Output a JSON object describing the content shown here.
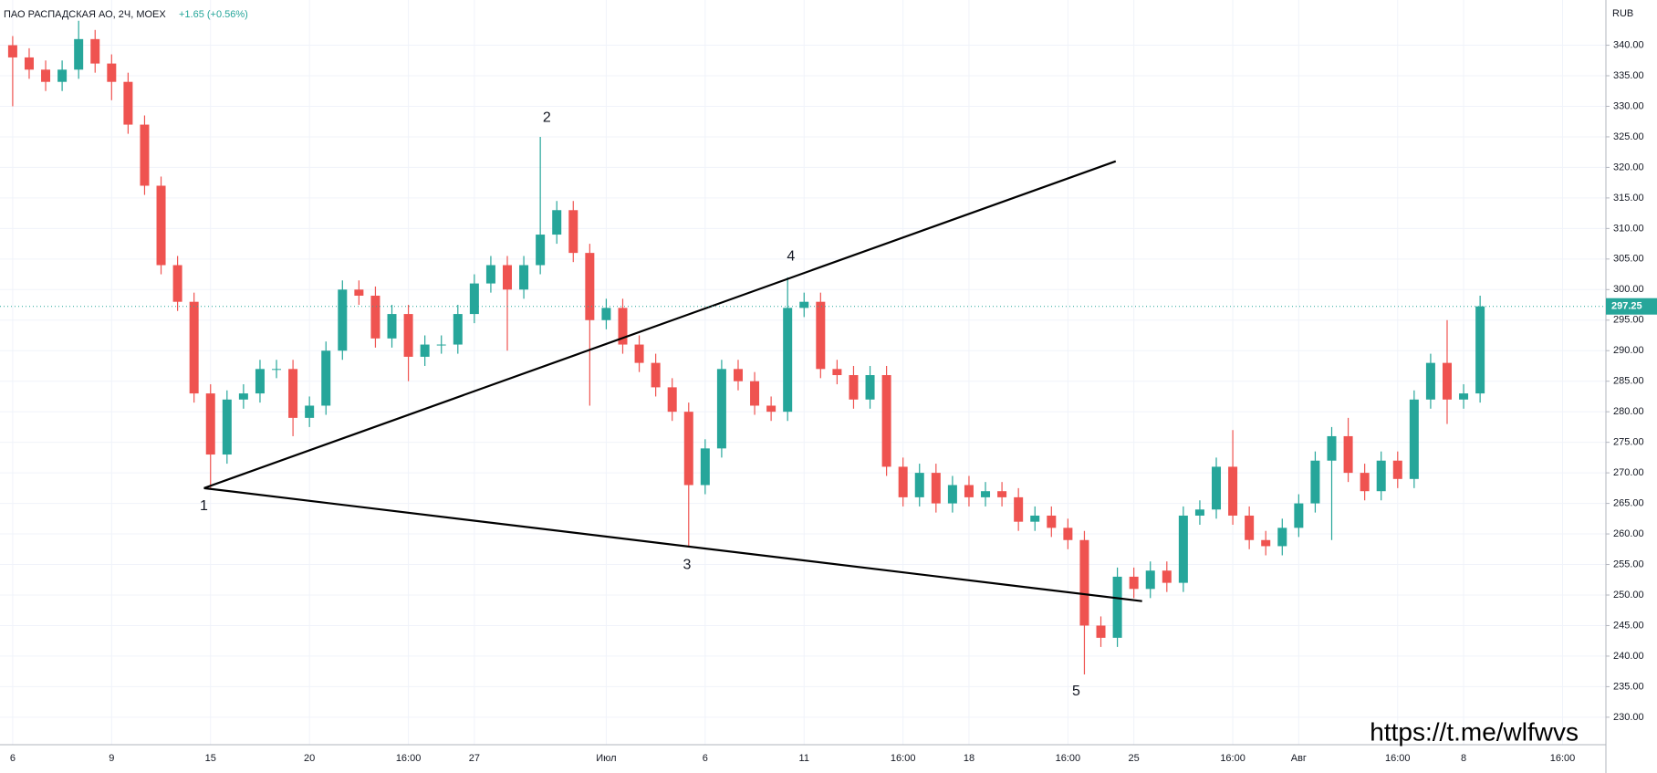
{
  "chart_data": {
    "type": "candlestick",
    "title": "ПАО РАСПАДСКАЯ АО, 2Ч, MOEX",
    "change": "+1.65 (+0.56%)",
    "currency": "RUB",
    "watermark": "https://t.me/wlfwvs",
    "up_color": "#26a69a",
    "down_color": "#ef5350",
    "grid": true,
    "categories": [
      "6",
      null,
      null,
      null,
      null,
      null,
      "9",
      null,
      null,
      null,
      null,
      null,
      "15",
      null,
      null,
      null,
      null,
      null,
      "20",
      null,
      null,
      null,
      null,
      null,
      "16:00",
      null,
      null,
      null,
      "27",
      null,
      null,
      null,
      null,
      null,
      null,
      null,
      "Июл",
      null,
      null,
      null,
      null,
      null,
      "6",
      null,
      null,
      null,
      null,
      null,
      "11",
      null,
      null,
      null,
      null,
      null,
      "16:00",
      null,
      null,
      null,
      "18",
      null,
      null,
      null,
      null,
      null,
      "16:00",
      null,
      null,
      null,
      "25",
      null,
      null,
      null,
      null,
      null,
      "16:00",
      null,
      null,
      null,
      "Авг",
      null,
      null,
      null,
      null,
      null,
      "16:00",
      null,
      null,
      null,
      "8",
      null,
      null,
      null,
      null,
      null,
      "16:00",
      null,
      null
    ],
    "open": [
      340,
      338,
      336,
      334,
      336,
      341,
      337,
      334,
      327,
      317,
      304,
      298,
      283,
      273,
      282,
      283,
      287,
      287,
      279,
      281,
      290,
      300,
      299,
      292,
      296,
      289,
      291,
      291,
      296,
      301,
      304,
      300,
      304,
      309,
      313,
      306,
      295,
      297,
      291,
      288,
      284,
      280,
      268,
      274,
      287,
      285,
      281,
      280,
      297,
      298,
      287,
      286,
      282,
      286,
      271,
      266,
      270,
      265,
      268,
      266,
      267,
      266,
      262,
      263,
      261,
      259,
      245,
      243,
      253,
      251,
      254,
      252,
      263,
      264,
      271,
      263,
      259,
      258,
      261,
      265,
      272,
      276,
      270,
      267,
      272,
      269,
      282,
      288,
      282,
      283,
      null,
      null,
      null,
      null,
      null,
      null,
      null
    ],
    "high": [
      341.5,
      339.5,
      337.5,
      337.5,
      344,
      342.5,
      338.5,
      335.5,
      328.5,
      318.5,
      305.5,
      299.5,
      284.5,
      283.5,
      284.5,
      288.5,
      288.5,
      288.5,
      282.5,
      291.5,
      301.5,
      301.5,
      300.5,
      297.5,
      297.5,
      292.5,
      292.5,
      297.5,
      302.5,
      305.5,
      305.5,
      305.5,
      325,
      314.5,
      314.5,
      307.5,
      298.5,
      298.5,
      292.5,
      289.5,
      285.5,
      281.5,
      275.5,
      288.5,
      288.5,
      286.5,
      282.5,
      302,
      299.5,
      299.5,
      288.5,
      287.5,
      287.5,
      287.5,
      272.5,
      271.5,
      271.5,
      269.5,
      269.5,
      268.5,
      268.5,
      267.5,
      264.5,
      264.5,
      262.5,
      260.5,
      246.5,
      254.5,
      254.5,
      255.5,
      255.5,
      264.5,
      265.5,
      272.5,
      277,
      264.5,
      260.5,
      262.5,
      266.5,
      273.5,
      277.5,
      279,
      271.5,
      273.5,
      273.5,
      283.5,
      289.5,
      295,
      284.5,
      299,
      null,
      null,
      null,
      null,
      null,
      null,
      null
    ],
    "low": [
      330,
      334.5,
      332.5,
      332.5,
      334.5,
      335.5,
      331,
      325.5,
      315.5,
      302.5,
      296.5,
      281.5,
      267.5,
      271.5,
      280.5,
      281.5,
      285.5,
      276,
      277.5,
      279.5,
      288.5,
      297.5,
      290.5,
      290.5,
      285,
      287.5,
      289.5,
      289.5,
      294.5,
      299.5,
      290,
      298.5,
      302.5,
      307.5,
      304.5,
      281,
      293.5,
      289.5,
      286.5,
      282.5,
      278.5,
      258,
      266.5,
      272.5,
      283.5,
      279.5,
      278.5,
      278.5,
      295.5,
      285.5,
      284.5,
      280.5,
      280.5,
      269.5,
      264.5,
      264.5,
      263.5,
      263.5,
      264.5,
      264.5,
      264.5,
      260.5,
      260.5,
      259.5,
      257.5,
      237,
      241.5,
      241.5,
      249.5,
      249.5,
      250.5,
      250.5,
      261.5,
      262.5,
      261.5,
      257.5,
      256.5,
      256.5,
      259.5,
      263.5,
      259,
      268.5,
      265.5,
      265.5,
      267.5,
      267.5,
      280.5,
      278,
      280.5,
      281.5,
      null,
      null,
      null,
      null,
      null,
      null,
      null
    ],
    "close": [
      338,
      336,
      334,
      336,
      341,
      337,
      334,
      327,
      317,
      304,
      298,
      283,
      273,
      282,
      283,
      287,
      287,
      279,
      281,
      290,
      300,
      299,
      292,
      296,
      289,
      291,
      291,
      296,
      301,
      304,
      300,
      304,
      309,
      313,
      306,
      295,
      297,
      291,
      288,
      284,
      280,
      268,
      274,
      287,
      285,
      281,
      280,
      297,
      298,
      287,
      286,
      282,
      286,
      271,
      266,
      270,
      265,
      268,
      266,
      267,
      266,
      262,
      263,
      261,
      259,
      245,
      243,
      253,
      251,
      254,
      252,
      263,
      264,
      271,
      263,
      259,
      258,
      261,
      265,
      272,
      276,
      270,
      267,
      272,
      269,
      282,
      288,
      282,
      283,
      297.25,
      null,
      null,
      null,
      null,
      null,
      null,
      null
    ],
    "ylim": [
      225.5,
      347.4
    ],
    "yticks": [
      {
        "value": 340,
        "label": "340.00"
      },
      {
        "value": 335,
        "label": "335.00"
      },
      {
        "value": 330,
        "label": "330.00"
      },
      {
        "value": 325,
        "label": "325.00"
      },
      {
        "value": 320,
        "label": "320.00"
      },
      {
        "value": 315,
        "label": "315.00"
      },
      {
        "value": 310,
        "label": "310.00"
      },
      {
        "value": 305,
        "label": "305.00"
      },
      {
        "value": 300,
        "label": "300.00"
      },
      {
        "value": 295,
        "label": "295.00"
      },
      {
        "value": 290,
        "label": "290.00"
      },
      {
        "value": 285,
        "label": "285.00"
      },
      {
        "value": 280,
        "label": "280.00"
      },
      {
        "value": 275,
        "label": "275.00"
      },
      {
        "value": 270,
        "label": "270.00"
      },
      {
        "value": 265,
        "label": "265.00"
      },
      {
        "value": 260,
        "label": "260.00"
      },
      {
        "value": 255,
        "label": "255.00"
      },
      {
        "value": 250,
        "label": "250.00"
      },
      {
        "value": 245,
        "label": "245.00"
      },
      {
        "value": 240,
        "label": "240.00"
      },
      {
        "value": 235,
        "label": "235.00"
      },
      {
        "value": 230,
        "label": "230.00"
      }
    ],
    "trendlines": [
      {
        "x": [
          11.6,
          66.9
        ],
        "y": [
          267.5,
          321
        ]
      },
      {
        "x": [
          11.6,
          68.5
        ],
        "y": [
          267.5,
          249
        ]
      }
    ],
    "annotations": [
      {
        "text": "1",
        "x": 11.6,
        "y": 264.5
      },
      {
        "text": "2",
        "x": 32.4,
        "y": 328.1
      },
      {
        "text": "3",
        "x": 40.9,
        "y": 254.9
      },
      {
        "text": "4",
        "x": 47.2,
        "y": 305.4
      },
      {
        "text": "5",
        "x": 64.5,
        "y": 234.2
      }
    ]
  }
}
